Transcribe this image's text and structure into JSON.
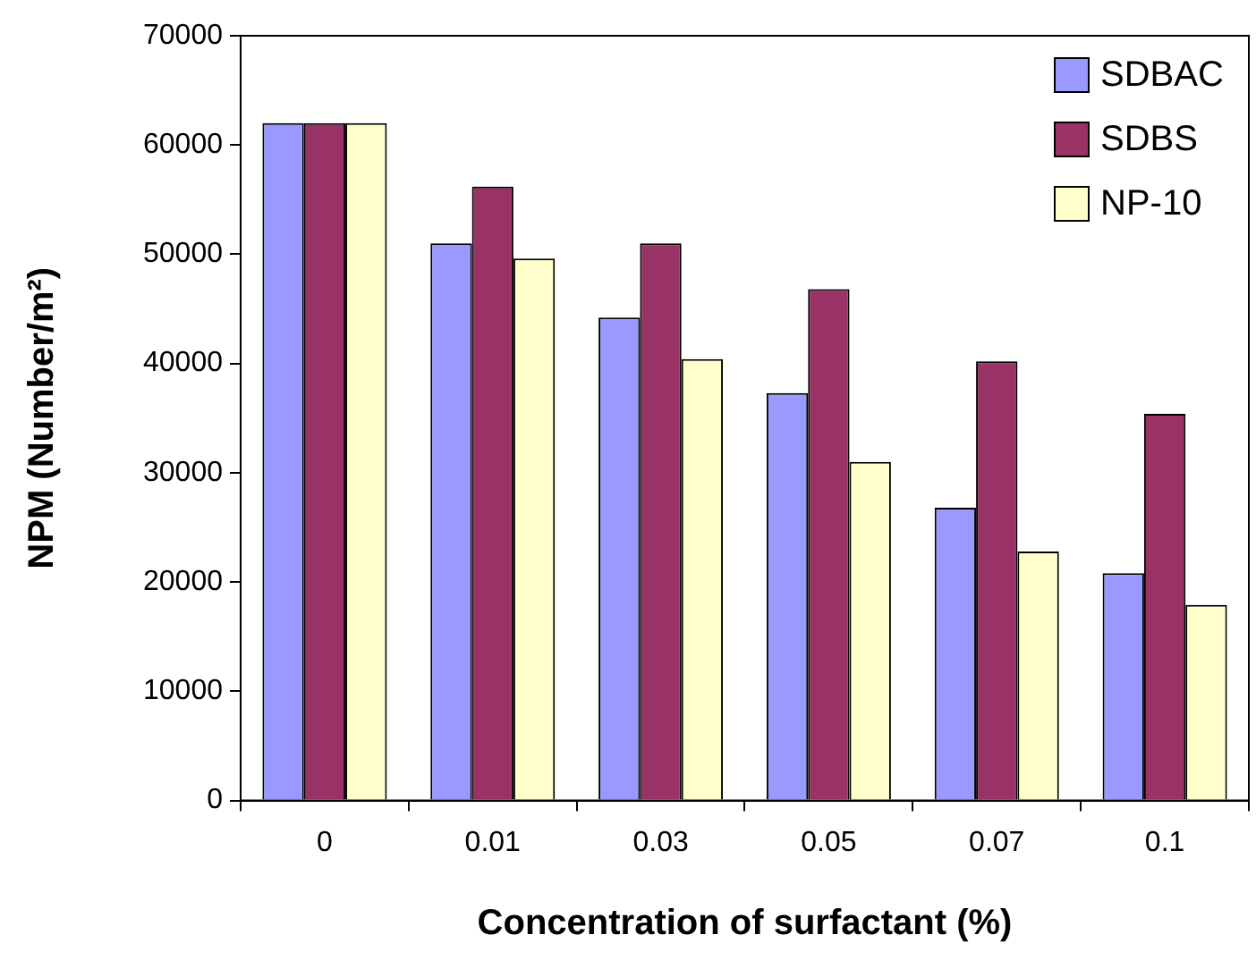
{
  "chart_data": {
    "type": "bar",
    "xlabel": "Concentration of surfactant (%)",
    "ylabel": "NPM (Number/m²)",
    "categories": [
      "0",
      "0.01",
      "0.03",
      "0.05",
      "0.07",
      "0.1"
    ],
    "series": [
      {
        "name": "SDBAC",
        "color": "#9999ff",
        "values": [
          62000,
          51000,
          44200,
          37300,
          26800,
          20800
        ]
      },
      {
        "name": "SDBS",
        "color": "#993366",
        "values": [
          62000,
          56200,
          51000,
          46800,
          40200,
          35400
        ]
      },
      {
        "name": "NP-10",
        "color": "#ffffcc",
        "values": [
          62000,
          49600,
          40400,
          31000,
          22800,
          17900
        ]
      }
    ],
    "ylim": [
      0,
      70000
    ],
    "yticks": [
      0,
      10000,
      20000,
      30000,
      40000,
      50000,
      60000,
      70000
    ],
    "grid": false,
    "legend": "top right"
  }
}
